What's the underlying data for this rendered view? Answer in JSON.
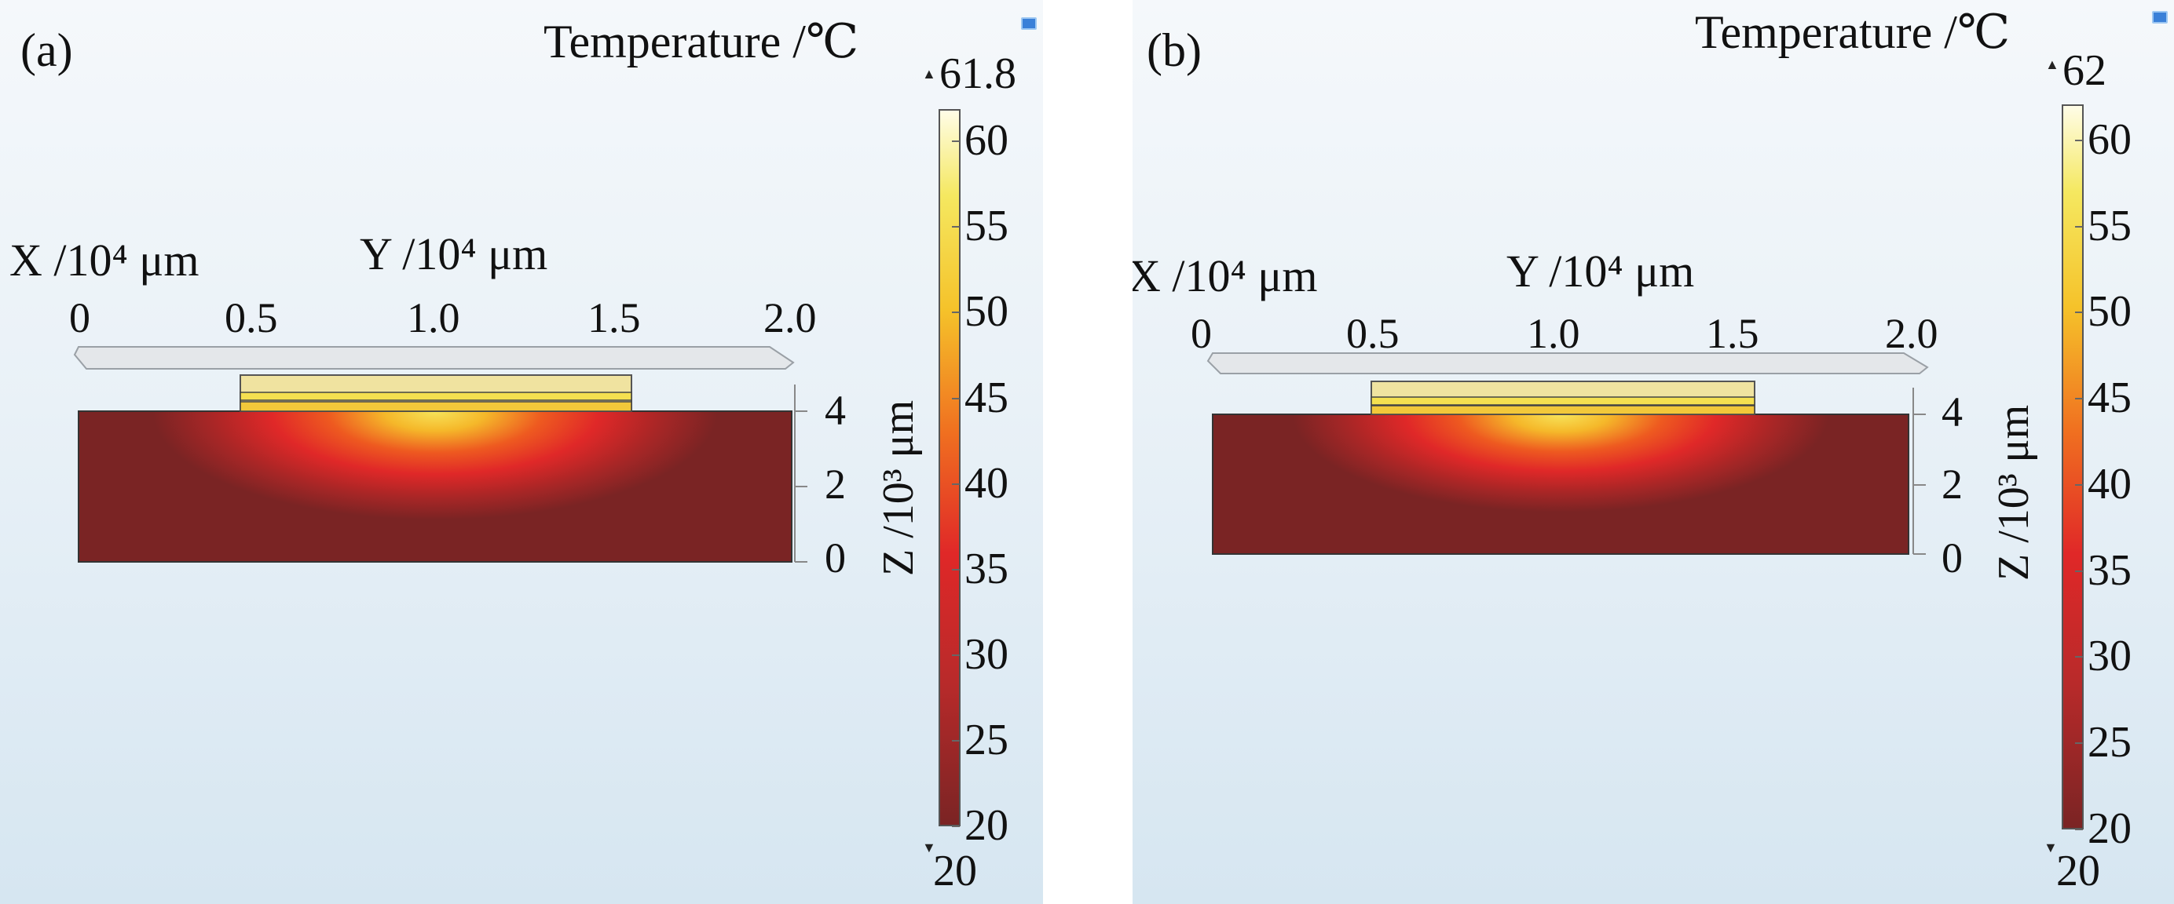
{
  "chart_data": [
    {
      "type": "heatmap",
      "panel_label": "(a)",
      "colorbar": {
        "title": "Temperature /℃",
        "max_label": "61.8",
        "min_label": "20",
        "ticks": [
          60,
          55,
          50,
          45,
          40,
          35,
          30,
          25,
          20
        ],
        "range": [
          20,
          61.8
        ]
      },
      "axes": {
        "x_title": "X /10⁴ μm",
        "y_title": "Y /10⁴ μm",
        "z_title": "Z /10³ μm",
        "x_ticks": [
          "0",
          "0.5",
          "1.0",
          "1.5",
          "2.0"
        ],
        "z_ticks": [
          "4",
          "2",
          "0"
        ]
      },
      "colors": [
        "#7a2424",
        "#b82a2a",
        "#e02828",
        "#f07020",
        "#f5c22a",
        "#f5e860",
        "#fffde8"
      ]
    },
    {
      "type": "heatmap",
      "panel_label": "(b)",
      "colorbar": {
        "title": "Temperature /℃",
        "max_label": "62",
        "min_label": "20",
        "ticks": [
          60,
          55,
          50,
          45,
          40,
          35,
          30,
          25,
          20
        ],
        "range": [
          20,
          62
        ]
      },
      "axes": {
        "x_title": "X /10⁴ μm",
        "y_title": "Y /10⁴ μm",
        "z_title": "Z /10³ μm",
        "x_ticks": [
          "0",
          "0.5",
          "1.0",
          "1.5",
          "2.0"
        ],
        "z_ticks": [
          "4",
          "2",
          "0"
        ]
      },
      "colors": [
        "#7a2424",
        "#b82a2a",
        "#e02828",
        "#f07020",
        "#f5c22a",
        "#f5e860",
        "#fffde8"
      ]
    }
  ]
}
